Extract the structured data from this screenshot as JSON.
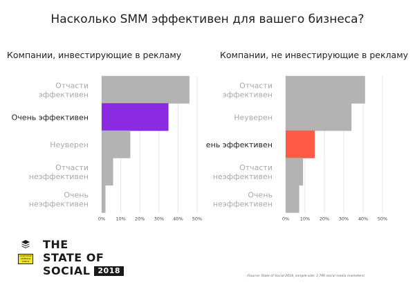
{
  "title": "Насколько SMM эффективен для вашего бизнеса?",
  "chart_data": [
    {
      "type": "bar",
      "orientation": "horizontal",
      "title": "Компании, инвестирующие в рекламу",
      "categories": [
        [
          "Отчасти",
          "эффективен"
        ],
        [
          "Очень эффективен"
        ],
        [
          "Неуверен"
        ],
        [
          "Отчасти",
          "неэффективен"
        ],
        [
          "Очень",
          "неэффективен"
        ]
      ],
      "values": [
        46,
        35,
        15,
        6,
        2
      ],
      "colors": [
        "#b3b3b3",
        "#8a2be2",
        "#b3b3b3",
        "#b3b3b3",
        "#b3b3b3"
      ],
      "highlight_index": 1,
      "xlim": [
        0,
        50
      ],
      "xticks": [
        "0%",
        "10%",
        "20%",
        "30%",
        "40%",
        "50%"
      ],
      "grid": true
    },
    {
      "type": "bar",
      "orientation": "horizontal",
      "title": "Компании, не инвестирующие в рекламу",
      "categories": [
        [
          "Отчасти",
          "эффективен"
        ],
        [
          "Неуверен"
        ],
        [
          "Очень эффективен"
        ],
        [
          "Отчасти",
          "неэффективен"
        ],
        [
          "Очень",
          "неэффективен"
        ]
      ],
      "values": [
        41,
        34,
        15,
        9,
        7
      ],
      "colors": [
        "#b3b3b3",
        "#b3b3b3",
        "#ff5a45",
        "#b3b3b3",
        "#b3b3b3"
      ],
      "highlight_index": 2,
      "xlim": [
        0,
        50
      ],
      "xticks": [
        "0%",
        "10%",
        "20%",
        "30%",
        "40%",
        "50%"
      ],
      "grid": true
    }
  ],
  "logo": {
    "lines": [
      "THE",
      "STATE OF",
      "SOCIAL"
    ],
    "year": "2018",
    "badge": "ПОЛЕЗНЫЕ СЕРВИСЫ КНИГИ"
  },
  "source": "(Source: State of Social 2018, sample size: 3,796 social media marketers)"
}
